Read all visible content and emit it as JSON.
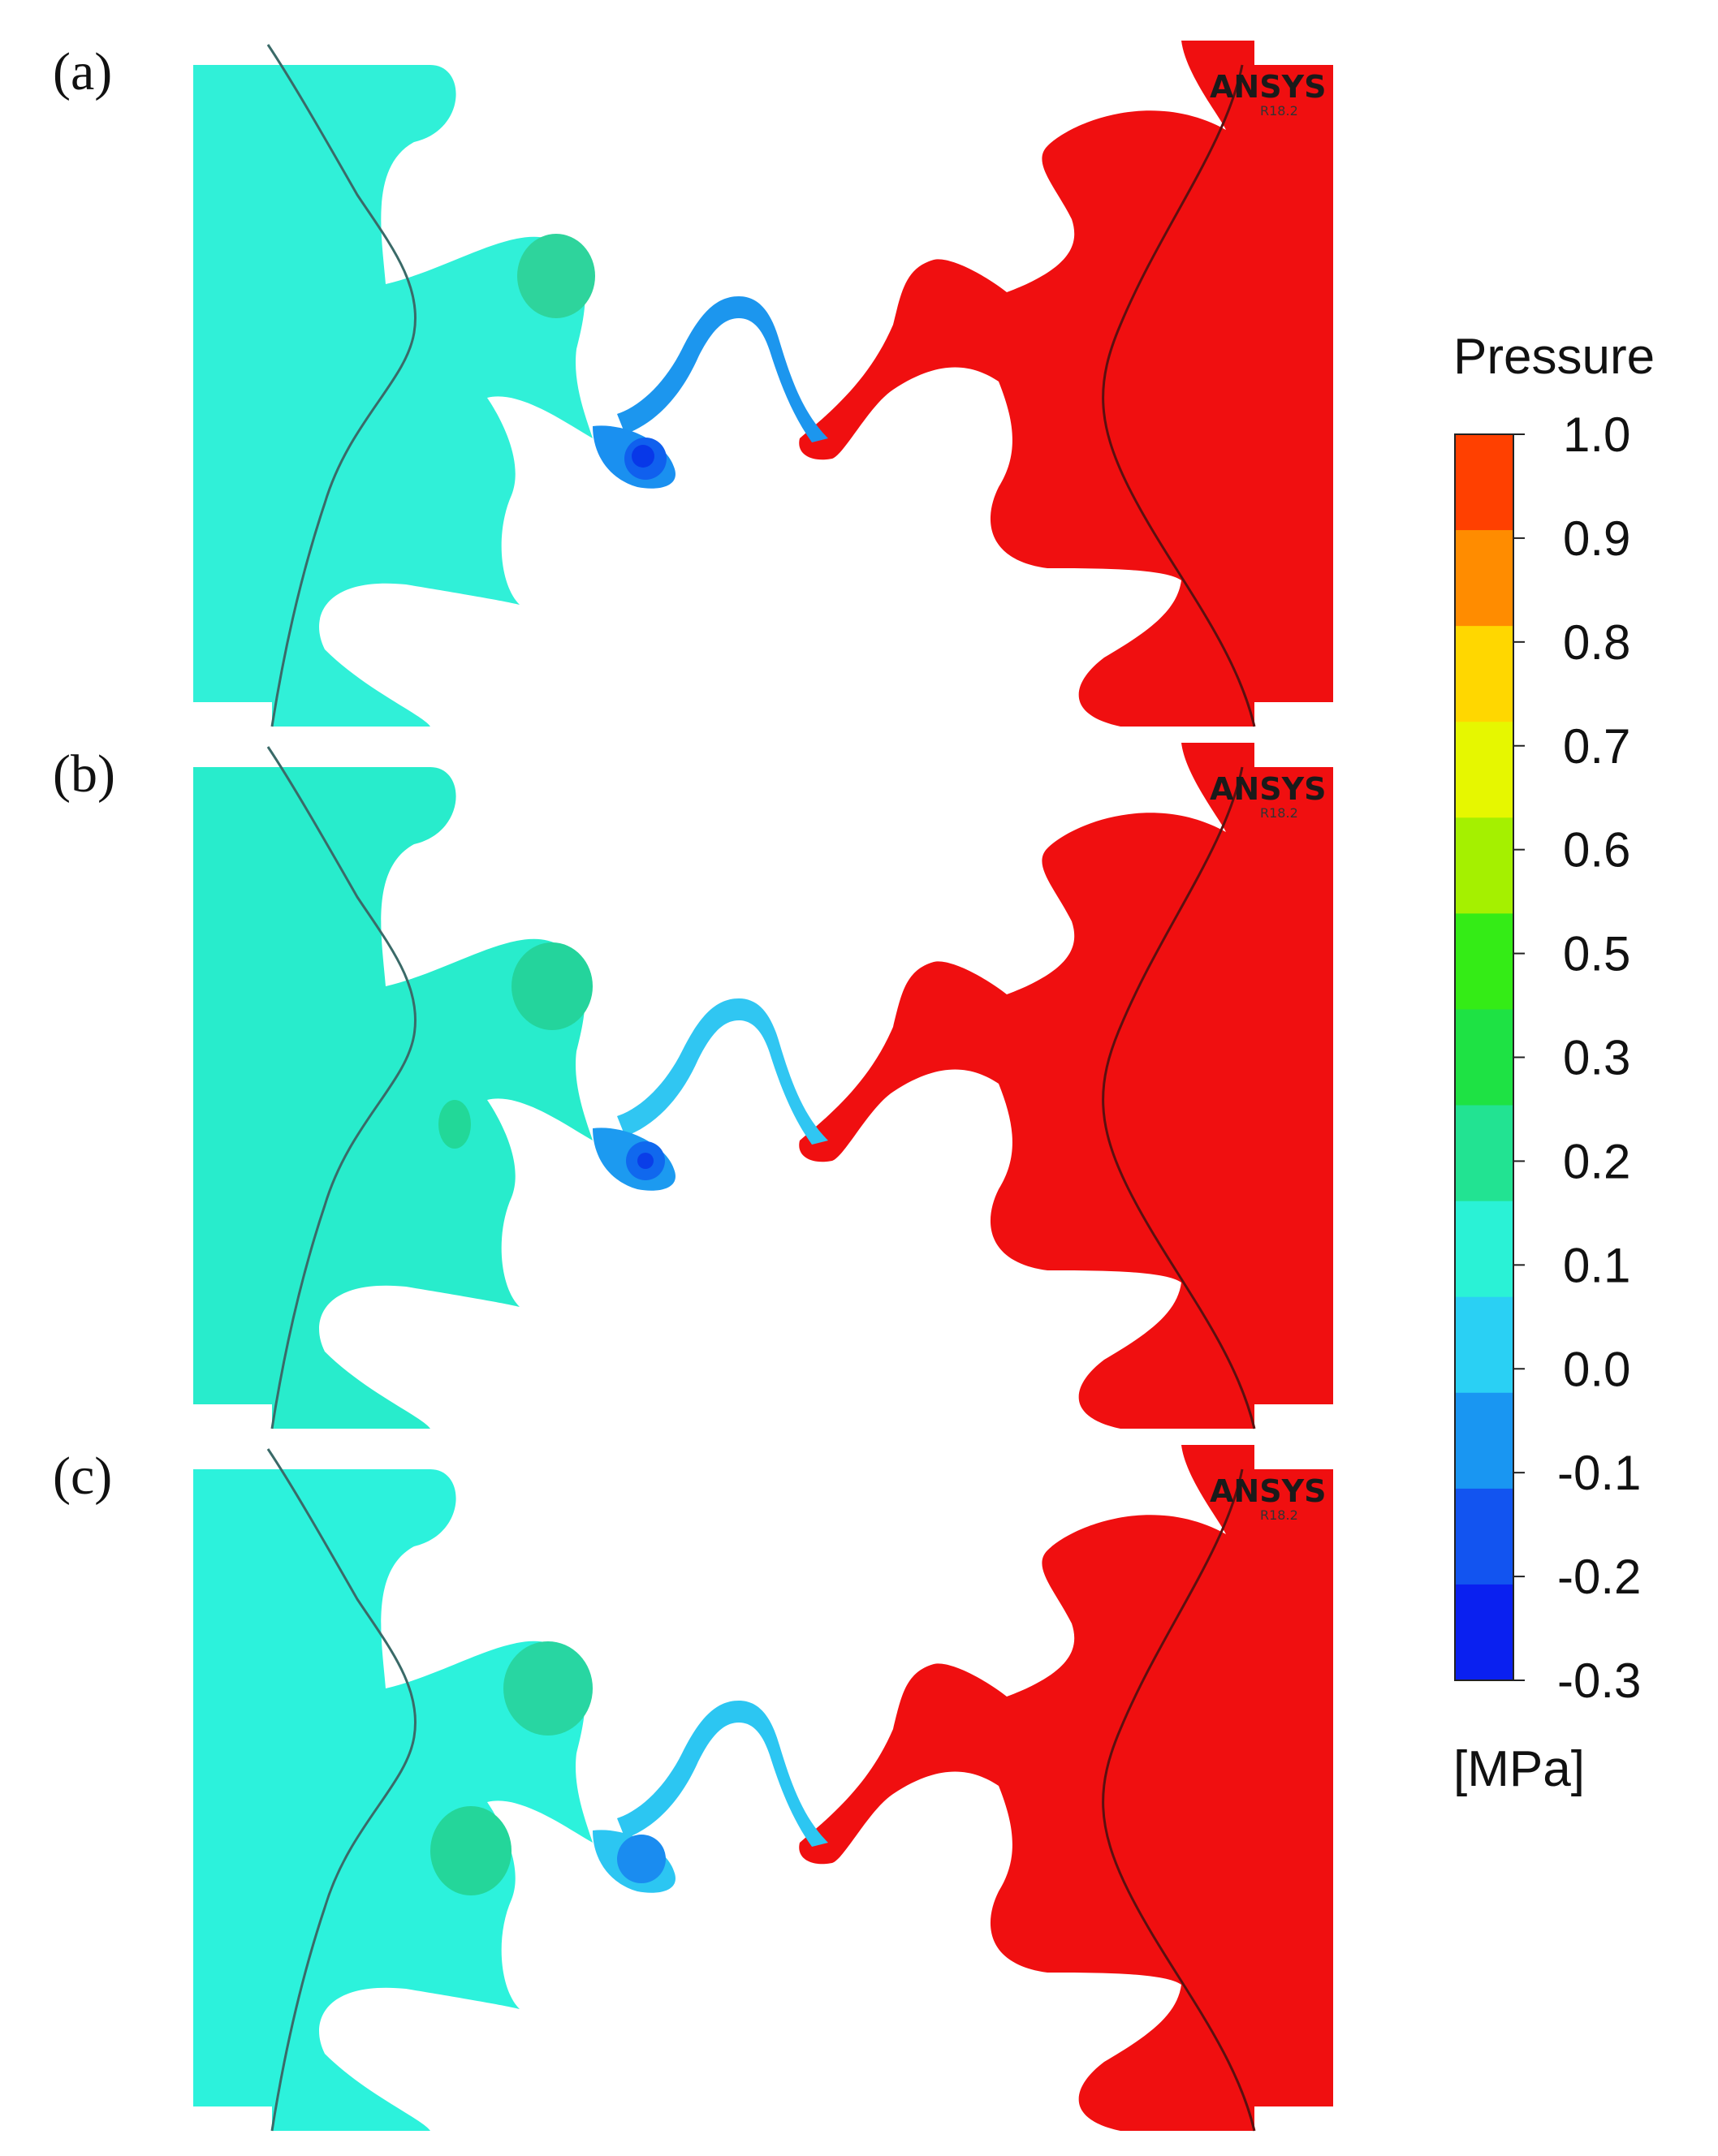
{
  "panels": [
    {
      "label": "(a)",
      "brand": "ANSYS",
      "version": "R18.2",
      "left_field": "#30f0d8",
      "inner_bg": "#24e8d0",
      "upper_blob": "#2ed49c",
      "lower_blob": null,
      "pocket_outer": "#1a90f0",
      "pocket_mid": "#1060ee",
      "pocket_core": "#0838e8",
      "ridge": "#1c96ee",
      "icons": {
        "upper_blob": "blob-icon"
      }
    },
    {
      "label": "(b)",
      "brand": "ANSYS",
      "version": "R18.2",
      "left_field": "#28eccc",
      "inner_bg": "#2ae6c8",
      "upper_blob": "#24d49c",
      "lower_blob": "#22d898",
      "pocket_outer": "#1c9af0",
      "pocket_mid": "#1068ee",
      "pocket_core": "#0a3ee8",
      "ridge": "#30c6f2"
    },
    {
      "label": "(c)",
      "brand": "ANSYS",
      "version": "R18.2",
      "left_field": "#2cf2dc",
      "inner_bg": "#26eccf",
      "upper_blob": "#28d6a2",
      "lower_blob": "#24d69a",
      "pocket_outer": "#2cc6f2",
      "pocket_mid": "#1a8cf0",
      "pocket_core": "#1a8cf0",
      "ridge": "#2cc6f2"
    }
  ],
  "right_field": "#f00f10",
  "legend": {
    "title": "Pressure",
    "unit": "[MPa]",
    "ticks": [
      "1.0",
      "0.9",
      "0.8",
      "0.7",
      "0.6",
      "0.5",
      "0.3",
      "0.2",
      "0.1",
      "0.0",
      "-0.1",
      "-0.2",
      "-0.3"
    ],
    "colors": [
      "#ff4000",
      "#ff8c00",
      "#ffd700",
      "#e6f700",
      "#a5f000",
      "#34ec16",
      "#1ee244",
      "#22e392",
      "#2af2d6",
      "#2ad0f4",
      "#1996f2",
      "#1254f0",
      "#0a20f0"
    ]
  }
}
